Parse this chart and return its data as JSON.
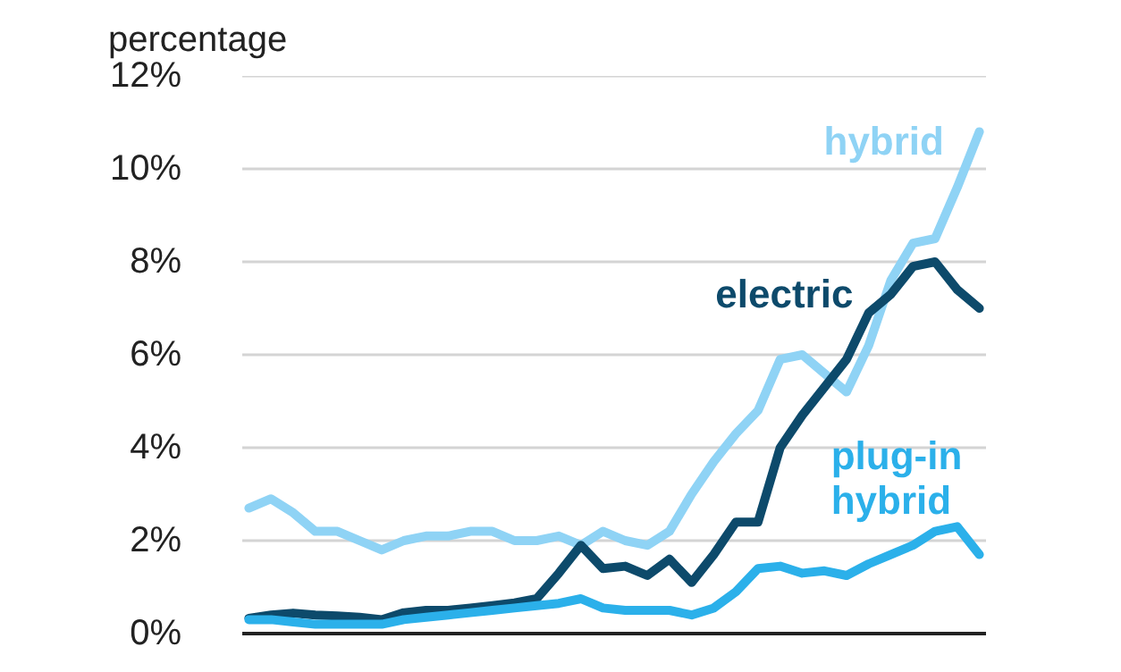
{
  "chart_data": {
    "type": "line",
    "ylabel": "percentage",
    "categories": [
      null,
      null,
      null,
      null,
      null,
      null,
      null,
      null,
      null,
      null,
      null,
      null,
      null,
      null,
      null,
      null,
      null,
      null,
      null,
      null,
      null,
      null,
      null,
      null,
      null,
      null,
      null,
      null,
      null,
      null,
      null,
      null,
      null,
      null
    ],
    "series": [
      {
        "name": "hybrid",
        "color": "#8fd3f5",
        "values": [
          2.7,
          2.9,
          2.6,
          2.2,
          2.2,
          2.0,
          1.8,
          2.0,
          2.1,
          2.1,
          2.2,
          2.2,
          2.0,
          2.0,
          2.1,
          1.9,
          2.2,
          2.0,
          1.9,
          2.2,
          3.0,
          3.7,
          4.3,
          4.8,
          5.9,
          6.0,
          5.6,
          5.2,
          6.2,
          7.6,
          8.4,
          8.5,
          9.6,
          10.8
        ]
      },
      {
        "name": "electric",
        "color": "#0d4a6b",
        "values": [
          0.33,
          0.4,
          0.44,
          0.4,
          0.38,
          0.35,
          0.3,
          0.45,
          0.5,
          0.5,
          0.55,
          0.6,
          0.66,
          0.75,
          1.3,
          1.9,
          1.4,
          1.45,
          1.25,
          1.6,
          1.1,
          1.7,
          2.4,
          2.4,
          4.0,
          4.7,
          5.3,
          5.9,
          6.9,
          7.3,
          7.9,
          8.0,
          7.4,
          7.0
        ]
      },
      {
        "name": "plug-in hybrid",
        "color": "#2bb0ea",
        "values": [
          0.3,
          0.3,
          0.25,
          0.2,
          0.2,
          0.2,
          0.2,
          0.3,
          0.35,
          0.4,
          0.45,
          0.5,
          0.55,
          0.6,
          0.65,
          0.75,
          0.55,
          0.5,
          0.5,
          0.5,
          0.4,
          0.55,
          0.9,
          1.4,
          1.45,
          1.3,
          1.35,
          1.25,
          1.5,
          1.7,
          1.9,
          2.2,
          2.3,
          1.7
        ]
      }
    ],
    "ylim": [
      0,
      12
    ],
    "yticks": [
      {
        "value": 0,
        "label": "0%"
      },
      {
        "value": 2,
        "label": "2%"
      },
      {
        "value": 4,
        "label": "4%"
      },
      {
        "value": 6,
        "label": "6%"
      },
      {
        "value": 8,
        "label": "8%"
      },
      {
        "value": 10,
        "label": "10%"
      },
      {
        "value": 12,
        "label": "12%"
      }
    ],
    "grid": "y",
    "tick_labels": "y",
    "line_style": "solid"
  }
}
